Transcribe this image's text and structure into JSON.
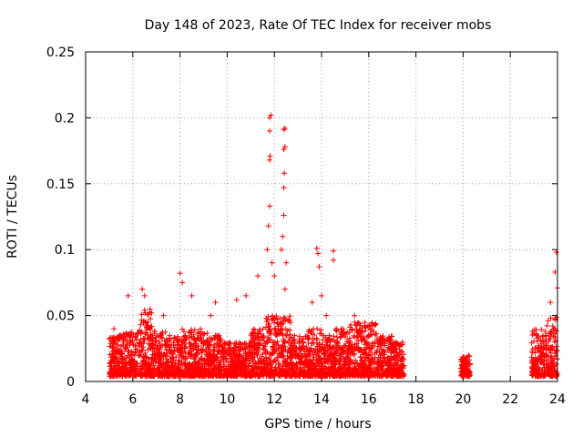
{
  "chart_data": {
    "type": "scatter",
    "title": "Day 148 of 2023, Rate Of TEC Index for receiver mobs",
    "xlabel": "GPS time / hours",
    "ylabel": "ROTI / TECUs",
    "xlim": [
      4,
      24
    ],
    "ylim": [
      0,
      0.25
    ],
    "grid": true,
    "marker": "+",
    "color": "#ff0000",
    "x_ticks": [
      "4",
      "6",
      "8",
      "10",
      "12",
      "14",
      "16",
      "18",
      "20",
      "22",
      "24"
    ],
    "y_ticks": [
      "0",
      "0.05",
      "0.1",
      "0.15",
      "0.2",
      "0.25"
    ],
    "series": [
      {
        "name": "ROTI",
        "clusters": [
          {
            "x_start": 5.0,
            "x_end": 5.6,
            "y_max": 0.035
          },
          {
            "x_start": 5.6,
            "x_end": 6.2,
            "y_max": 0.04
          },
          {
            "x_start": 6.2,
            "x_end": 6.8,
            "y_max": 0.055
          },
          {
            "x_start": 6.8,
            "x_end": 7.4,
            "y_max": 0.04
          },
          {
            "x_start": 7.4,
            "x_end": 8.0,
            "y_max": 0.035
          },
          {
            "x_start": 8.0,
            "x_end": 8.6,
            "y_max": 0.04
          },
          {
            "x_start": 8.6,
            "x_end": 9.2,
            "y_max": 0.04
          },
          {
            "x_start": 9.2,
            "x_end": 9.8,
            "y_max": 0.035
          },
          {
            "x_start": 9.8,
            "x_end": 10.4,
            "y_max": 0.03
          },
          {
            "x_start": 10.4,
            "x_end": 11.0,
            "y_max": 0.03
          },
          {
            "x_start": 11.0,
            "x_end": 11.6,
            "y_max": 0.04
          },
          {
            "x_start": 11.6,
            "x_end": 12.2,
            "y_max": 0.05
          },
          {
            "x_start": 12.2,
            "x_end": 12.7,
            "y_max": 0.05
          },
          {
            "x_start": 12.7,
            "x_end": 13.3,
            "y_max": 0.035
          },
          {
            "x_start": 13.3,
            "x_end": 14.0,
            "y_max": 0.04
          },
          {
            "x_start": 14.0,
            "x_end": 14.6,
            "y_max": 0.035
          },
          {
            "x_start": 14.6,
            "x_end": 15.2,
            "y_max": 0.04
          },
          {
            "x_start": 15.2,
            "x_end": 15.8,
            "y_max": 0.045
          },
          {
            "x_start": 15.8,
            "x_end": 16.4,
            "y_max": 0.045
          },
          {
            "x_start": 16.4,
            "x_end": 17.0,
            "y_max": 0.035
          },
          {
            "x_start": 17.0,
            "x_end": 17.5,
            "y_max": 0.03
          },
          {
            "x_start": 19.9,
            "x_end": 20.3,
            "y_max": 0.02
          },
          {
            "x_start": 22.9,
            "x_end": 23.5,
            "y_max": 0.04
          },
          {
            "x_start": 23.5,
            "x_end": 24.0,
            "y_max": 0.05
          }
        ],
        "spikes": [
          {
            "x": 5.2,
            "y": 0.04
          },
          {
            "x": 5.8,
            "y": 0.065
          },
          {
            "x": 6.4,
            "y": 0.07
          },
          {
            "x": 6.5,
            "y": 0.065
          },
          {
            "x": 7.3,
            "y": 0.05
          },
          {
            "x": 8.0,
            "y": 0.082
          },
          {
            "x": 8.1,
            "y": 0.075
          },
          {
            "x": 8.5,
            "y": 0.065
          },
          {
            "x": 9.5,
            "y": 0.06
          },
          {
            "x": 9.3,
            "y": 0.05
          },
          {
            "x": 10.4,
            "y": 0.062
          },
          {
            "x": 10.8,
            "y": 0.065
          },
          {
            "x": 11.3,
            "y": 0.08
          },
          {
            "x": 11.7,
            "y": 0.1
          },
          {
            "x": 11.75,
            "y": 0.118
          },
          {
            "x": 11.8,
            "y": 0.133
          },
          {
            "x": 11.8,
            "y": 0.168
          },
          {
            "x": 11.82,
            "y": 0.171
          },
          {
            "x": 11.8,
            "y": 0.19
          },
          {
            "x": 11.8,
            "y": 0.2
          },
          {
            "x": 11.85,
            "y": 0.202
          },
          {
            "x": 11.9,
            "y": 0.09
          },
          {
            "x": 12.0,
            "y": 0.08
          },
          {
            "x": 12.3,
            "y": 0.1
          },
          {
            "x": 12.35,
            "y": 0.11
          },
          {
            "x": 12.4,
            "y": 0.126
          },
          {
            "x": 12.4,
            "y": 0.147
          },
          {
            "x": 12.42,
            "y": 0.158
          },
          {
            "x": 12.4,
            "y": 0.176
          },
          {
            "x": 12.45,
            "y": 0.178
          },
          {
            "x": 12.4,
            "y": 0.191
          },
          {
            "x": 12.45,
            "y": 0.192
          },
          {
            "x": 12.5,
            "y": 0.09
          },
          {
            "x": 12.45,
            "y": 0.07
          },
          {
            "x": 13.6,
            "y": 0.06
          },
          {
            "x": 13.8,
            "y": 0.101
          },
          {
            "x": 13.85,
            "y": 0.097
          },
          {
            "x": 13.9,
            "y": 0.087
          },
          {
            "x": 14.0,
            "y": 0.065
          },
          {
            "x": 14.2,
            "y": 0.05
          },
          {
            "x": 14.5,
            "y": 0.099
          },
          {
            "x": 14.5,
            "y": 0.092
          },
          {
            "x": 15.4,
            "y": 0.05
          },
          {
            "x": 23.7,
            "y": 0.06
          },
          {
            "x": 23.9,
            "y": 0.083
          },
          {
            "x": 23.95,
            "y": 0.098
          },
          {
            "x": 24.0,
            "y": 0.071
          }
        ]
      }
    ]
  }
}
